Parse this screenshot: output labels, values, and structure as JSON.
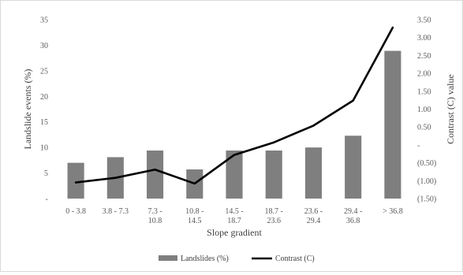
{
  "chart_data": {
    "type": "bar",
    "title": "",
    "xlabel": "Slope gradient",
    "ylabel": "Landslide events (%)",
    "y2label": "Contrast (C) value",
    "categories": [
      [
        "0 - 3.8"
      ],
      [
        "3.8 - 7.3"
      ],
      [
        "7.3 -",
        "10.8"
      ],
      [
        "10.8 -",
        "14.5"
      ],
      [
        "14.5 -",
        "18.7"
      ],
      [
        "18.7 -",
        "23.6"
      ],
      [
        "23.6 -",
        "29.4"
      ],
      [
        "29.4 -",
        "36.8"
      ],
      [
        "> 36.8"
      ]
    ],
    "ylim": [
      0,
      35
    ],
    "yticks": [
      "-",
      "5",
      "10",
      "15",
      "20",
      "25",
      "30",
      "35"
    ],
    "y2lim": [
      -1.5,
      3.5
    ],
    "y2ticks": [
      "(1.50)",
      "(1.00)",
      "(0.50)",
      "-",
      "0.50",
      "1.00",
      "1.50",
      "2.00",
      "2.50",
      "3.00",
      "3.50"
    ],
    "grid": false,
    "legend_position": "bottom",
    "series": [
      {
        "name": "Landslides (%)",
        "type": "bar",
        "axis": "left",
        "color": "#7f7f7f",
        "values": [
          7.0,
          8.1,
          9.4,
          5.7,
          9.4,
          9.4,
          10.0,
          12.3,
          28.9
        ]
      },
      {
        "name": "Contrast (C)",
        "type": "line",
        "axis": "right",
        "color": "#000000",
        "values": [
          -1.05,
          -0.92,
          -0.69,
          -1.08,
          -0.28,
          0.07,
          0.54,
          1.24,
          3.28
        ]
      }
    ]
  }
}
